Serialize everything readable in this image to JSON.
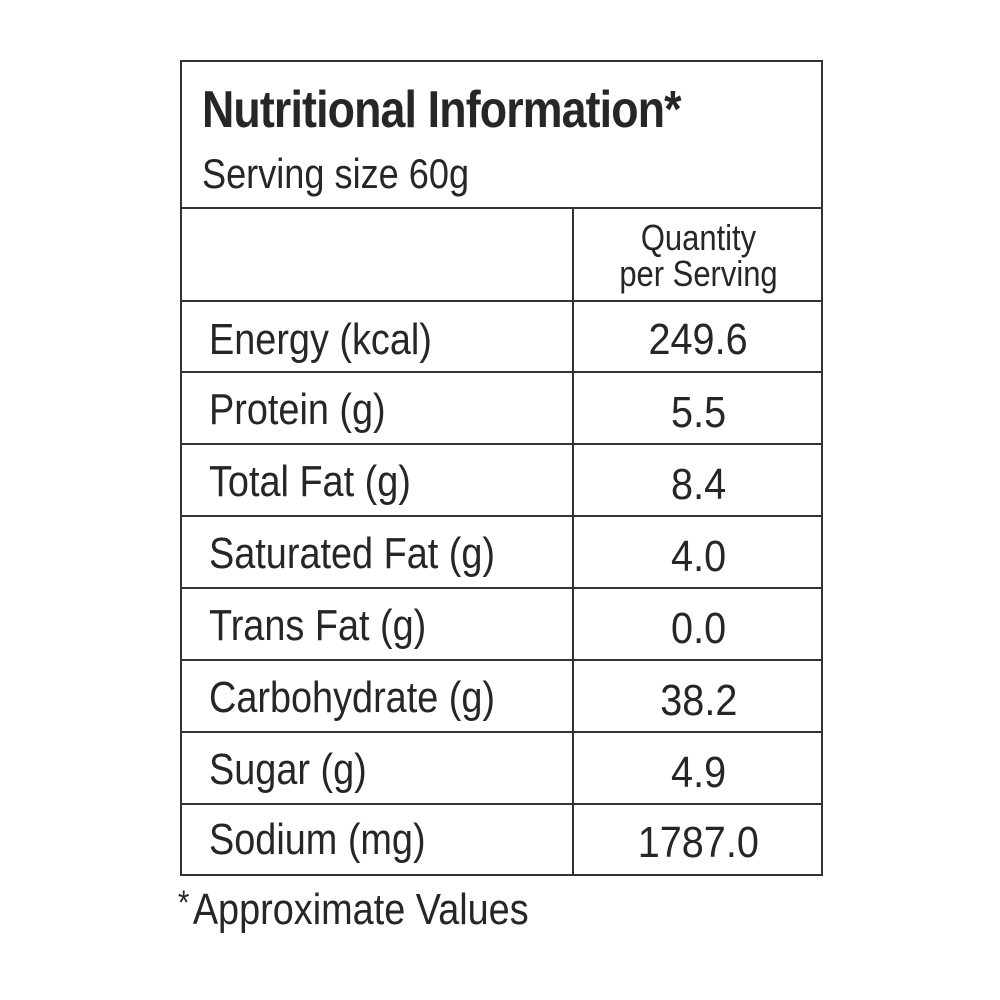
{
  "title": "Nutritional Information",
  "title_marker": "*",
  "serving_size": "Serving size 60g",
  "column_header": {
    "line1": "Quantity",
    "line2": "per Serving"
  },
  "rows": [
    {
      "label": "Energy (kcal)",
      "value": "249.6"
    },
    {
      "label": "Protein (g)",
      "value": "5.5"
    },
    {
      "label": "Total Fat (g)",
      "value": "8.4"
    },
    {
      "label": "Saturated Fat (g)",
      "value": "4.0"
    },
    {
      "label": "Trans Fat (g)",
      "value": "0.0"
    },
    {
      "label": "Carbohydrate (g)",
      "value": "38.2"
    },
    {
      "label": "Sugar (g)",
      "value": "4.9"
    },
    {
      "label": "Sodium (mg)",
      "value": "1787.0"
    }
  ],
  "footnote": {
    "marker": "*",
    "text": "Approximate Values"
  },
  "colors": {
    "text": "#262626",
    "border": "#333333",
    "background": "#ffffff"
  }
}
